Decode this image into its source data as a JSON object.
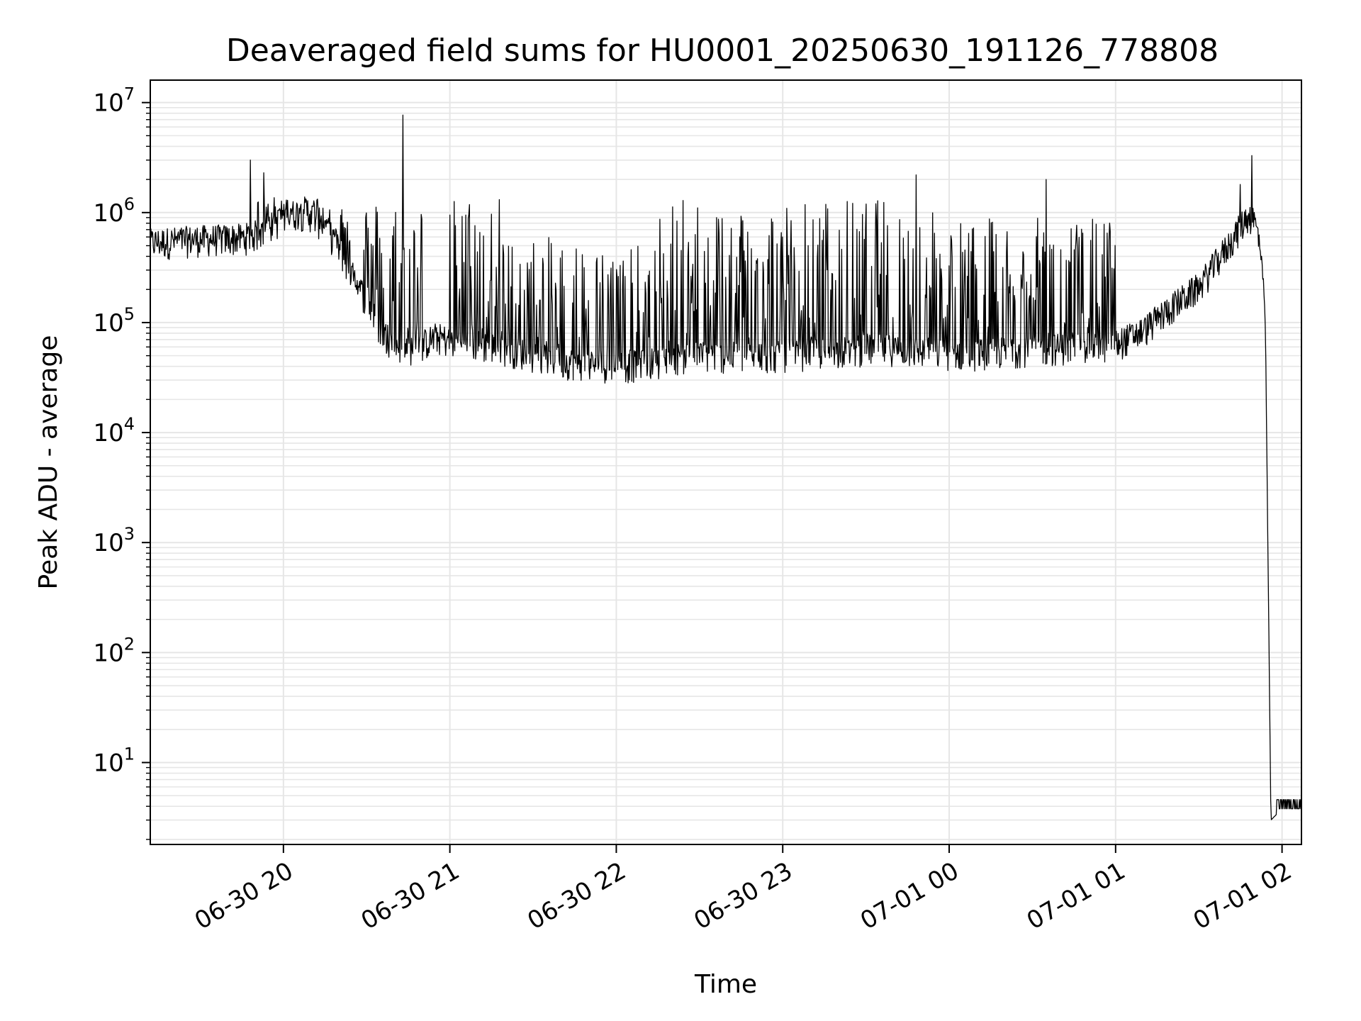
{
  "chart_data": {
    "type": "line",
    "title": "Deaveraged field sums for HU0001_20250630_191126_778808",
    "xlabel": "Time",
    "ylabel": "Peak ADU - average",
    "yscale": "log",
    "ylim": [
      1.8,
      16000000
    ],
    "xlim": [
      "06-30 19:12",
      "07-01 02:07"
    ],
    "x_ticks": [
      "06-30 20",
      "06-30 21",
      "06-30 22",
      "06-30 23",
      "07-01 00",
      "07-01 01",
      "07-01 02"
    ],
    "y_ticks": [
      {
        "base": "10",
        "exp": "1",
        "value": 10
      },
      {
        "base": "10",
        "exp": "2",
        "value": 100
      },
      {
        "base": "10",
        "exp": "3",
        "value": 1000
      },
      {
        "base": "10",
        "exp": "4",
        "value": 10000
      },
      {
        "base": "10",
        "exp": "5",
        "value": 100000
      },
      {
        "base": "10",
        "exp": "6",
        "value": 1000000
      },
      {
        "base": "10",
        "exp": "7",
        "value": 10000000
      }
    ],
    "grid": true,
    "line_color": "#000000",
    "series": [
      {
        "x": [
          "06-30 19:12",
          "06-30 19:20",
          "06-30 19:30",
          "06-30 19:40",
          "06-30 19:46",
          "06-30 19:50",
          "06-30 19:55",
          "06-30 20:00",
          "06-30 20:05",
          "06-30 20:10",
          "06-30 20:15",
          "06-30 20:20",
          "06-30 20:25",
          "06-30 20:30",
          "06-30 20:35",
          "06-30 20:40",
          "06-30 20:45",
          "06-30 20:50",
          "06-30 20:55",
          "06-30 21:00",
          "06-30 21:10",
          "06-30 21:20",
          "06-30 21:30",
          "06-30 21:40",
          "06-30 21:50",
          "06-30 22:00",
          "06-30 22:10",
          "06-30 22:20",
          "06-30 22:30",
          "06-30 22:40",
          "06-30 22:50",
          "06-30 23:00",
          "06-30 23:10",
          "06-30 23:20",
          "06-30 23:30",
          "06-30 23:40",
          "06-30 23:50",
          "07-01 00:00",
          "07-01 00:10",
          "07-01 00:20",
          "07-01 00:30",
          "07-01 00:40",
          "07-01 00:50",
          "07-01 01:00",
          "07-01 01:10",
          "07-01 01:20",
          "07-01 01:30",
          "07-01 01:40",
          "07-01 01:45",
          "07-01 01:48",
          "07-01 01:50",
          "07-01 01:52",
          "07-01 01:54",
          "07-01 01:56",
          "07-01 02:00",
          "07-01 02:07"
        ],
        "y": [
          500000,
          520000,
          540000,
          550000,
          560000,
          600000,
          700000,
          850000,
          950000,
          900000,
          700000,
          450000,
          250000,
          150000,
          80000,
          60000,
          55000,
          60000,
          70000,
          65000,
          60000,
          55000,
          48000,
          42000,
          40000,
          38000,
          40000,
          45000,
          48000,
          47000,
          46000,
          48000,
          50000,
          52000,
          55000,
          55000,
          52000,
          50000,
          50000,
          52000,
          55000,
          56000,
          57000,
          60000,
          80000,
          130000,
          200000,
          450000,
          700000,
          900000,
          800000,
          500000,
          100000,
          3,
          3.8,
          3.8
        ],
        "bursts": [
          {
            "start": "06-30 19:50",
            "end": "06-30 20:50",
            "max": 1400000
          },
          {
            "start": "06-30 21:00",
            "end": "06-30 21:20",
            "max": 1500000
          },
          {
            "start": "06-30 21:20",
            "end": "06-30 21:50",
            "max": 600000
          },
          {
            "start": "06-30 21:50",
            "end": "06-30 22:15",
            "max": 500000
          },
          {
            "start": "06-30 22:15",
            "end": "06-30 23:55",
            "max": 1350000
          },
          {
            "start": "06-30 23:55",
            "end": "07-01 01:00",
            "max": 900000
          }
        ],
        "spikes": [
          {
            "x": "06-30 19:48",
            "y": 3000000
          },
          {
            "x": "06-30 19:53",
            "y": 2300000
          },
          {
            "x": "06-30 20:43",
            "y": 7700000
          },
          {
            "x": "06-30 23:48",
            "y": 2200000
          },
          {
            "x": "07-01 00:35",
            "y": 2000000
          },
          {
            "x": "07-01 01:45",
            "y": 1800000
          },
          {
            "x": "07-01 01:49",
            "y": 3300000
          }
        ]
      }
    ]
  }
}
